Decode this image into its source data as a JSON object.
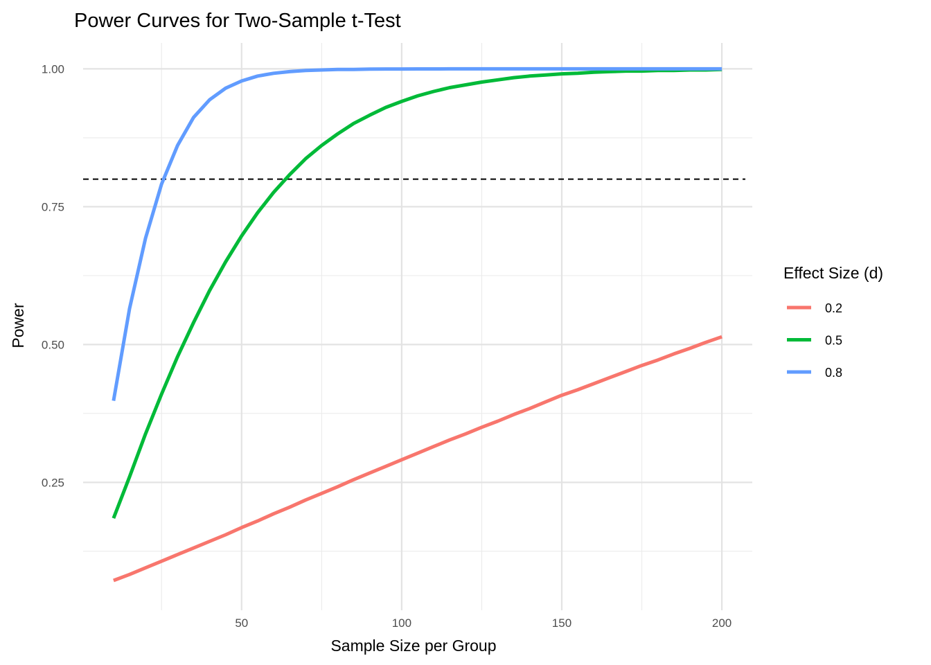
{
  "chart_data": {
    "type": "line",
    "title": "Power Curves for Two-Sample t-Test",
    "xlabel": "Sample Size per Group",
    "ylabel": "Power",
    "xlim": [
      0.5,
      209.5
    ],
    "ylim": [
      0.018,
      1.047
    ],
    "x_ticks": [
      50,
      100,
      150,
      200
    ],
    "x_tick_labels": [
      "50",
      "100",
      "150",
      "200"
    ],
    "y_ticks": [
      0.25,
      0.5,
      0.75,
      1.0
    ],
    "y_tick_labels": [
      "0.25",
      "0.50",
      "0.75",
      "1.00"
    ],
    "x_minor": [
      25,
      75,
      125,
      175
    ],
    "y_minor": [
      0.125,
      0.375,
      0.625,
      0.875
    ],
    "grid": true,
    "reference_line": {
      "y": 0.8,
      "style": "dashed",
      "color": "#000000"
    },
    "legend": {
      "title": "Effect Size (d)",
      "position": "right"
    },
    "x": [
      10,
      15,
      20,
      25,
      30,
      35,
      40,
      45,
      50,
      55,
      60,
      65,
      70,
      75,
      80,
      85,
      90,
      95,
      100,
      105,
      110,
      115,
      120,
      125,
      130,
      135,
      140,
      145,
      150,
      155,
      160,
      165,
      170,
      175,
      180,
      185,
      190,
      195,
      200
    ],
    "series": [
      {
        "name": "0.2",
        "color": "#F8766D",
        "values": [
          0.072,
          0.083,
          0.095,
          0.107,
          0.119,
          0.131,
          0.143,
          0.155,
          0.168,
          0.18,
          0.193,
          0.205,
          0.218,
          0.23,
          0.242,
          0.255,
          0.267,
          0.279,
          0.291,
          0.303,
          0.315,
          0.327,
          0.338,
          0.35,
          0.361,
          0.373,
          0.384,
          0.396,
          0.408,
          0.418,
          0.429,
          0.44,
          0.451,
          0.462,
          0.472,
          0.483,
          0.493,
          0.504,
          0.514
        ]
      },
      {
        "name": "0.5",
        "color": "#00BA38",
        "values": [
          0.185,
          0.26,
          0.338,
          0.41,
          0.478,
          0.54,
          0.598,
          0.65,
          0.697,
          0.739,
          0.776,
          0.808,
          0.837,
          0.861,
          0.882,
          0.901,
          0.916,
          0.93,
          0.941,
          0.951,
          0.959,
          0.966,
          0.971,
          0.976,
          0.98,
          0.984,
          0.987,
          0.989,
          0.991,
          0.992,
          0.994,
          0.995,
          0.996,
          0.996,
          0.997,
          0.997,
          0.998,
          0.998,
          0.999
        ]
      },
      {
        "name": "0.8",
        "color": "#619CFF",
        "values": [
          0.398,
          0.565,
          0.693,
          0.791,
          0.861,
          0.912,
          0.944,
          0.965,
          0.978,
          0.987,
          0.992,
          0.995,
          0.997,
          0.998,
          0.999,
          0.999,
          0.9995,
          0.9997,
          0.9998,
          0.9999,
          0.9999,
          1.0,
          1.0,
          1.0,
          1.0,
          1.0,
          1.0,
          1.0,
          1.0,
          1.0,
          1.0,
          1.0,
          1.0,
          1.0,
          1.0,
          1.0,
          1.0,
          1.0,
          1.0
        ]
      }
    ]
  }
}
